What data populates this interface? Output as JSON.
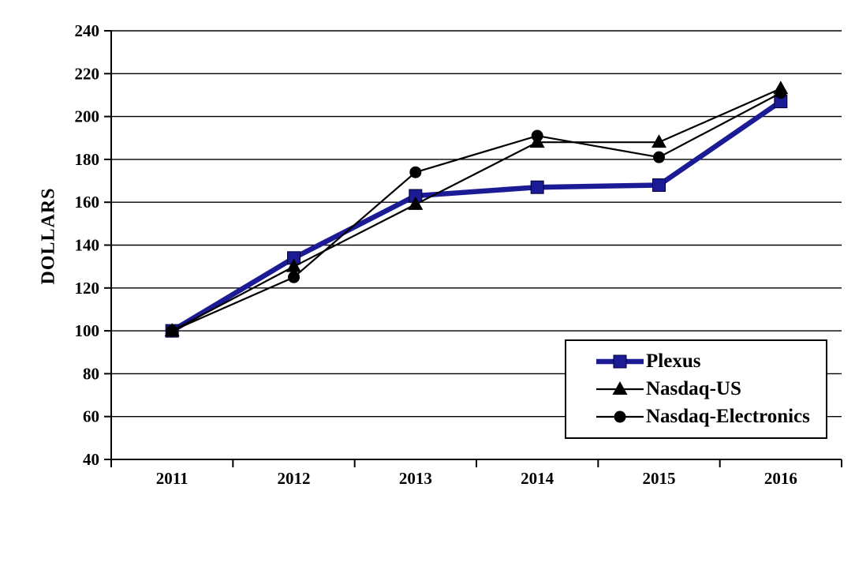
{
  "page": {
    "background_color": "#ffffff",
    "axis_color": "#000000",
    "text_color": "#000000"
  },
  "chart_data": {
    "type": "line",
    "title": "",
    "xlabel": "",
    "ylabel": "DOLLARS",
    "x_categories": [
      "2011",
      "2012",
      "2013",
      "2014",
      "2015",
      "2016"
    ],
    "ylim": [
      40,
      240
    ],
    "ytick_step": 20,
    "yticks": [
      40,
      60,
      80,
      100,
      120,
      140,
      160,
      180,
      200,
      220,
      240
    ],
    "grid": "horizontal gridlines on, black",
    "legend_position": "inset lower-right box with black border",
    "series": [
      {
        "name": "Plexus",
        "marker": "square",
        "color": "#1b1b96",
        "line_width": 6.5,
        "values": [
          100,
          134,
          163,
          167,
          168,
          207
        ]
      },
      {
        "name": "Nasdaq-US",
        "marker": "triangle",
        "color": "#000000",
        "line_width": 2.2,
        "values": [
          100,
          130,
          159,
          188,
          188,
          213
        ]
      },
      {
        "name": "Nasdaq-Electronics",
        "marker": "circle",
        "color": "#000000",
        "line_width": 2.2,
        "values": [
          100,
          125,
          174,
          191,
          181,
          211
        ]
      }
    ]
  }
}
